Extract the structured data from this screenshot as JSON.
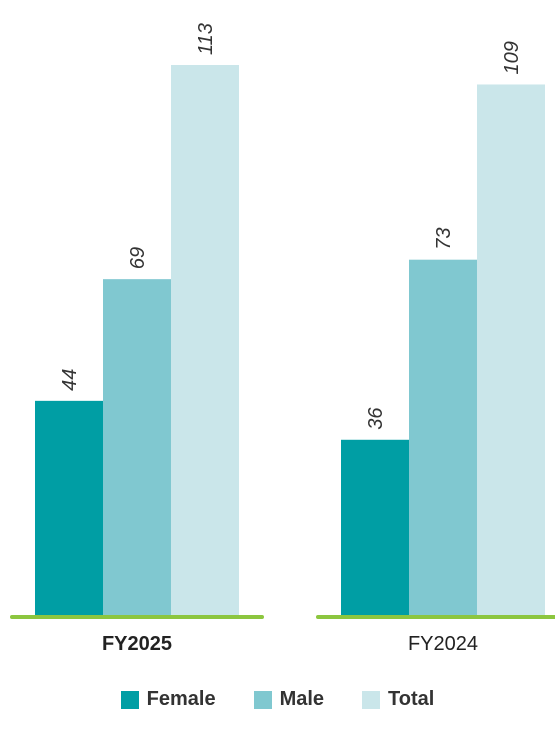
{
  "chart_data": {
    "type": "bar",
    "categories": [
      "FY2025",
      "FY2024"
    ],
    "series": [
      {
        "name": "Female",
        "values": [
          44,
          36
        ],
        "color": "#009ea4"
      },
      {
        "name": "Male",
        "values": [
          69,
          73
        ],
        "color": "#80c8d0"
      },
      {
        "name": "Total",
        "values": [
          113,
          109
        ],
        "color": "#cae6ea"
      }
    ],
    "ylim": [
      0,
      113
    ],
    "baseline_color": "#8cc63f",
    "bold_category": "FY2025",
    "grid": false,
    "legend_position": "bottom"
  }
}
